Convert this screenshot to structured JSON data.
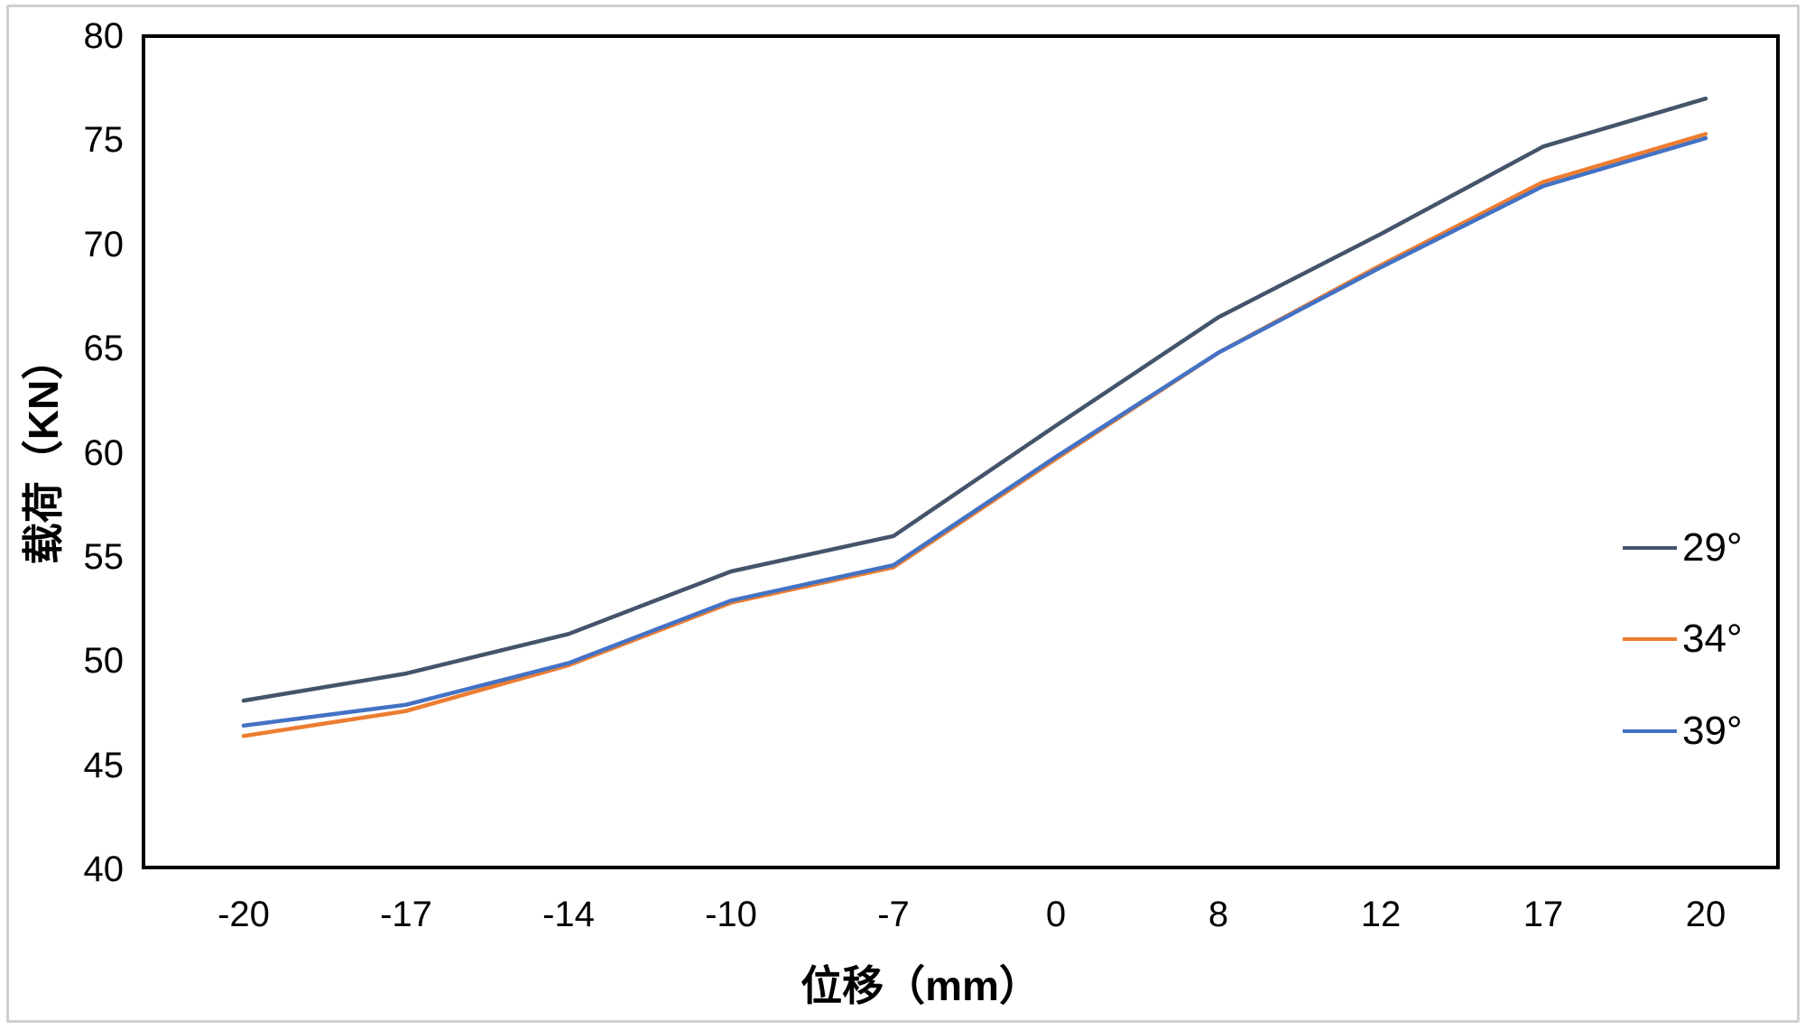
{
  "chart_data": {
    "type": "line",
    "title": "",
    "xlabel": "位移（mm）",
    "ylabel": "载荷（KN）",
    "categories": [
      -20,
      -17,
      -14,
      -10,
      -7,
      0,
      8,
      12,
      17,
      20
    ],
    "series": [
      {
        "name": "29°",
        "color": "#44546A",
        "values": [
          48.1,
          49.4,
          51.3,
          54.3,
          56.0,
          61.3,
          66.5,
          70.5,
          74.7,
          77.0
        ]
      },
      {
        "name": "34°",
        "color": "#ED7D31",
        "values": [
          46.4,
          47.6,
          49.8,
          52.8,
          54.5,
          59.7,
          64.8,
          69.0,
          73.0,
          75.3
        ]
      },
      {
        "name": "39°",
        "color": "#4472C4",
        "values": [
          46.9,
          47.9,
          49.9,
          52.9,
          54.6,
          59.8,
          64.8,
          68.9,
          72.8,
          75.1
        ]
      }
    ],
    "ylim": [
      40,
      80
    ],
    "yticks": [
      40,
      45,
      50,
      55,
      60,
      65,
      70,
      75,
      80
    ],
    "legend_position": "right",
    "grid": false,
    "axis_color": "#000000",
    "frame_color": "#cfcfcf",
    "plot_border_color": "#000000"
  }
}
